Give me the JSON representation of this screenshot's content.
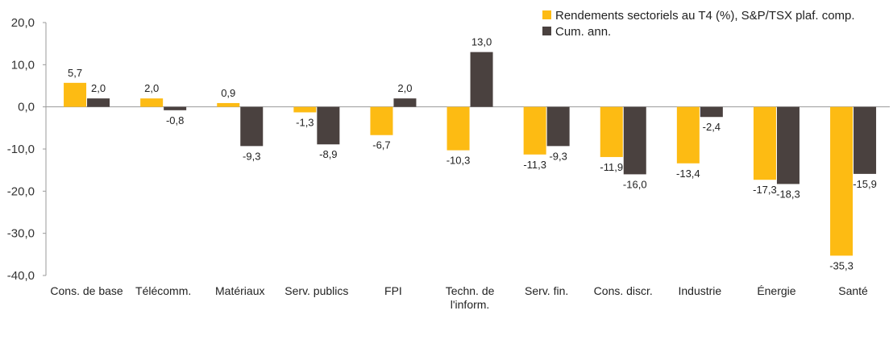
{
  "chart_data": {
    "type": "bar",
    "title": "",
    "xlabel": "",
    "ylabel": "",
    "ylim": [
      -40,
      20
    ],
    "yticks": [
      20,
      10,
      0,
      -10,
      -20,
      -30,
      -40
    ],
    "ytick_labels": [
      "20,0",
      "10,0",
      "0,0",
      "-10,0",
      "-20,0",
      "-30,0",
      "-40,0"
    ],
    "grid": false,
    "legend_position": "top-right",
    "categories": [
      [
        "Cons. de base"
      ],
      [
        "Télécomm."
      ],
      [
        "Matériaux"
      ],
      [
        "Serv. publics"
      ],
      [
        "FPI"
      ],
      [
        "Techn. de",
        "l'inform."
      ],
      [
        "Serv. fin."
      ],
      [
        "Cons. discr."
      ],
      [
        "Industrie"
      ],
      [
        "Énergie"
      ],
      [
        "Santé"
      ]
    ],
    "series": [
      {
        "name": "Rendements sectoriels au T4 (%), S&P/TSX plaf. comp.",
        "color": "#FDBB13",
        "values": [
          5.7,
          2.0,
          0.9,
          -1.3,
          -6.7,
          -10.3,
          -11.3,
          -11.9,
          -13.4,
          -17.3,
          -35.3
        ],
        "labels": [
          "5,7",
          "2,0",
          "0,9",
          "-1,3",
          "-6,7",
          "-10,3",
          "-11,3",
          "-11,9",
          "-13,4",
          "-17,3",
          "-35,3"
        ]
      },
      {
        "name": "Cum. ann.",
        "color": "#4A413F",
        "values": [
          2.0,
          -0.8,
          -9.3,
          -8.9,
          2.0,
          13.0,
          -9.3,
          -16.0,
          -2.4,
          -18.3,
          -15.9
        ],
        "labels": [
          "2,0",
          "-0,8",
          "-9,3",
          "-8,9",
          "2,0",
          "13,0",
          "-9,3",
          "-16,0",
          "-2,4",
          "-18,3",
          "-15,9"
        ]
      }
    ]
  }
}
